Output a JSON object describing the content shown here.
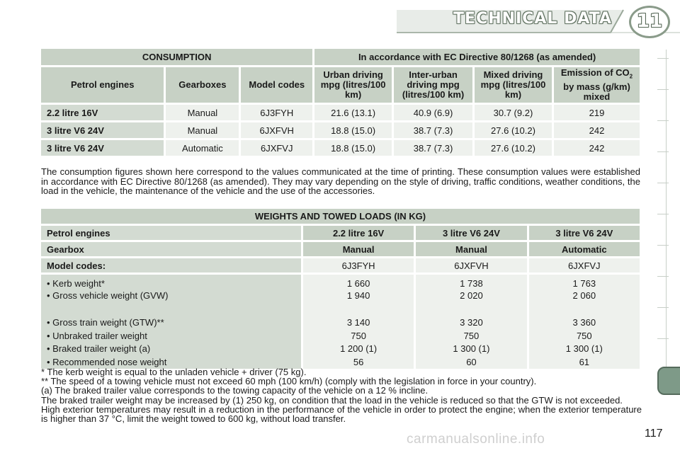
{
  "header": {
    "title": "TECHNICAL DATA",
    "chapter": "11"
  },
  "consumption": {
    "title_left": "CONSUMPTION",
    "title_right": "In accordance with EC Directive 80/1268 (as amended)",
    "columns": {
      "engines": "Petrol engines",
      "gearboxes": "Gearboxes",
      "model": "Model codes",
      "urban": "Urban driving mpg (litres/100 km)",
      "inter": "Inter-urban driving mpg (litres/100 km)",
      "mixed": "Mixed driving mpg (litres/100 km)",
      "emission_a": "Emission of CO",
      "emission_sub": "2",
      "emission_b": " by mass (g/km) mixed"
    },
    "rows": [
      [
        "2.2 litre 16V",
        "Manual",
        "6J3FYH",
        "21.6 (13.1)",
        "40.9 (6.9)",
        "30.7 (9.2)",
        "219"
      ],
      [
        "3 litre V6 24V",
        "Manual",
        "6JXFVH",
        "18.8 (15.0)",
        "38.7 (7.3)",
        "27.6 (10.2)",
        "242"
      ],
      [
        "3 litre V6 24V",
        "Automatic",
        "6JXFVJ",
        "18.8 (15.0)",
        "38.7 (7.3)",
        "27.6 (10.2)",
        "242"
      ]
    ]
  },
  "consumption_note": "The consumption figures shown here correspond to the values communicated at the time of printing. These consumption values were established in accordance with EC Directive 80/1268 (as amended). They may vary depending on the style of driving, traffic conditions, weather conditions, the load in the vehicle, the maintenance of the vehicle and the use of the accessories.",
  "weights": {
    "title": "WEIGHTS AND TOWED LOADS (IN KG)",
    "engines_label": "Petrol engines",
    "engines": [
      "2.2 litre 16V",
      "3 litre V6 24V",
      "3 litre V6 24V"
    ],
    "gearbox_label": "Gearbox",
    "gearboxes": [
      "Manual",
      "Manual",
      "Automatic"
    ],
    "model_label": "Model codes:",
    "models": [
      "6J3FYH",
      "6JXFVH",
      "6JXFVJ"
    ],
    "items": [
      "• Kerb weight*",
      "• Gross vehicle weight (GVW)",
      "• Gross train weight (GTW)**",
      "• Unbraked trailer weight",
      "• Braked trailer weight (a)",
      "• Recommended nose weight"
    ],
    "values": [
      [
        "1 660",
        "1 940",
        "3 140",
        "750",
        "1 200 (1)",
        "56"
      ],
      [
        "1 738",
        "2 020",
        "3 320",
        "750",
        "1 300 (1)",
        "60"
      ],
      [
        "1 763",
        "2 060",
        "3 360",
        "750",
        "1 300 (1)",
        "61"
      ]
    ]
  },
  "footnotes": [
    "*   The kerb weight is equal to the unladen vehicle + driver (75 kg).",
    "** The speed of a towing vehicle must not exceed 60 mph (100 km/h) (comply with the legislation in force in your country).",
    "(a) The braked trailer value corresponds to the towing capacity of the vehicle on a 12 % incline.",
    "The braked trailer weight may be increased by (1) 250 kg, on condition that the load in the vehicle is reduced so that the GTW is not exceeded.",
    "High exterior temperatures may result in a reduction in the performance of the vehicle in order to protect the engine; when the exterior temperature is higher than 37 °C, limit the weight towed to 600 kg, without load transfer."
  ],
  "page_number": "117",
  "watermark": "carmanualsonline.info"
}
